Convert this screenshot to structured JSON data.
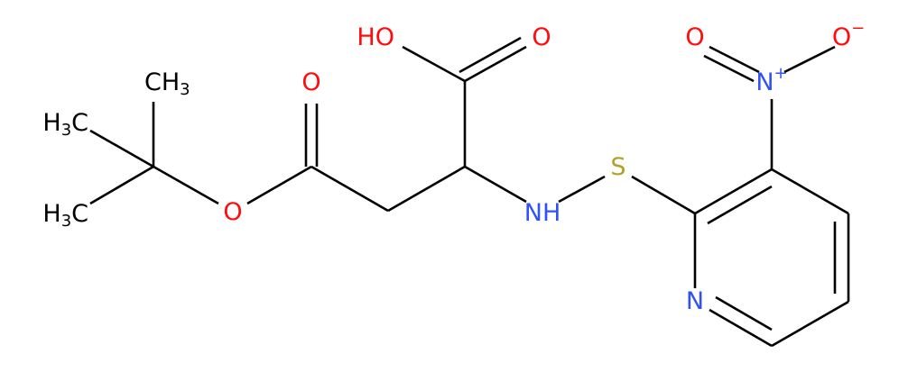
{
  "molecule": {
    "atoms": [
      "CH3",
      "H3C",
      "H3C",
      "O",
      "O",
      "HO",
      "O",
      "NH",
      "S",
      "N",
      "N+",
      "O",
      "O−"
    ]
  }
}
